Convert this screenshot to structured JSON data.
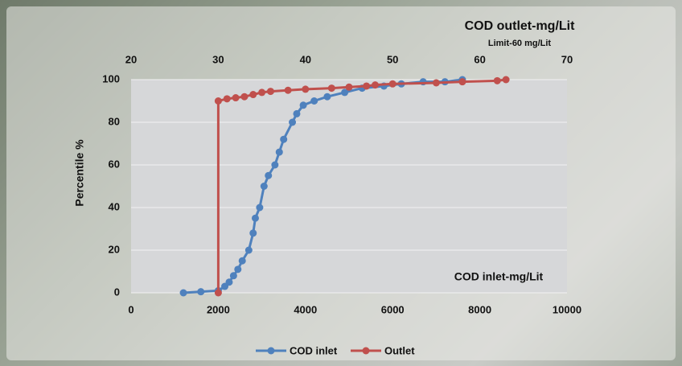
{
  "chart_data": {
    "type": "scatter-line",
    "annotations": [
      "COD outlet-mg/Lit",
      "Limit-60 mg/Lit",
      "COD inlet-mg/Lit"
    ],
    "y_label": "Percentile %",
    "xlim": [
      0,
      10000
    ],
    "xticks": [
      0,
      2000,
      4000,
      6000,
      8000,
      10000
    ],
    "x2lim": [
      20,
      70
    ],
    "x2ticks": [
      20,
      30,
      40,
      50,
      60,
      70
    ],
    "ylim": [
      0,
      100
    ],
    "yticks": [
      0,
      20,
      40,
      60,
      80,
      100
    ],
    "grid": true,
    "series": [
      {
        "name": "COD inlet",
        "color": "#4f81bd",
        "axis": "x",
        "x": [
          1200,
          1600,
          2000,
          2150,
          2250,
          2350,
          2450,
          2550,
          2700,
          2800,
          2850,
          2950,
          3050,
          3150,
          3300,
          3400,
          3500,
          3700,
          3800,
          3950,
          4200,
          4500,
          4900,
          5300,
          5800,
          6200,
          6700,
          7200,
          7600
        ],
        "values": [
          0,
          0.5,
          1,
          3,
          5,
          8,
          11,
          15,
          20,
          28,
          35,
          40,
          50,
          55,
          60,
          66,
          72,
          80,
          84,
          88,
          90,
          92,
          94,
          96,
          97,
          98,
          99,
          99,
          100
        ]
      },
      {
        "name": "Outlet",
        "color": "#c0504d",
        "axis": "x2",
        "x": [
          30,
          30,
          31,
          32,
          33,
          34,
          35,
          36,
          38,
          40,
          43,
          45,
          47,
          48,
          50,
          55,
          58,
          62,
          63
        ],
        "values": [
          0,
          90,
          91,
          91.5,
          92,
          93,
          94,
          94.5,
          95,
          95.5,
          96,
          96.5,
          97,
          97.5,
          98,
          98.5,
          99,
          99.5,
          100
        ]
      }
    ]
  }
}
